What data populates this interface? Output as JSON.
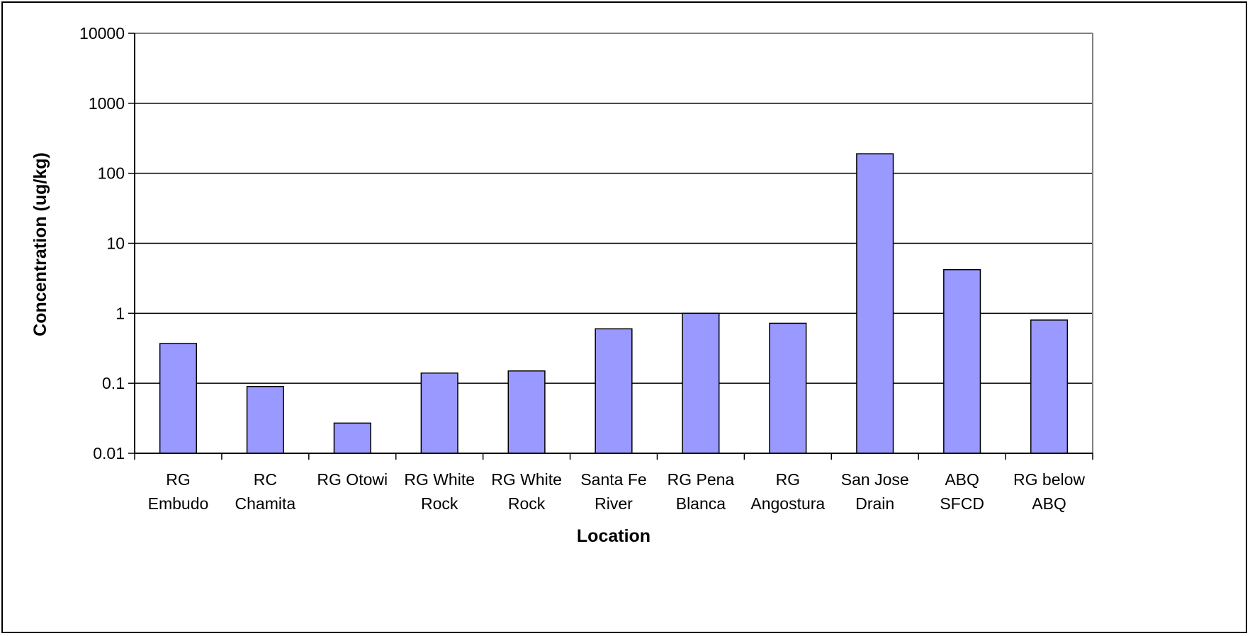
{
  "chart_data": {
    "type": "bar",
    "title": "",
    "xlabel": "Location",
    "ylabel": "Concentration (ug/kg)",
    "yscale": "log",
    "ylim": [
      0.01,
      10000
    ],
    "yticks": [
      "0.01",
      "0.1",
      "1",
      "10",
      "100",
      "1000",
      "10000"
    ],
    "grid": true,
    "legend": "none",
    "categories": [
      [
        "RG",
        "Embudo"
      ],
      [
        "RC",
        "Chamita"
      ],
      [
        "RG Otowi"
      ],
      [
        "RG White",
        "Rock"
      ],
      [
        "RG White",
        "Rock"
      ],
      [
        "Santa Fe",
        "River"
      ],
      [
        "RG Pena",
        "Blanca"
      ],
      [
        "RG",
        "Angostura"
      ],
      [
        "San Jose",
        "Drain"
      ],
      [
        "ABQ",
        "SFCD"
      ],
      [
        "RG below",
        "ABQ"
      ]
    ],
    "values": [
      0.37,
      0.09,
      0.027,
      0.14,
      0.15,
      0.6,
      1.0,
      0.72,
      190,
      4.2,
      0.8
    ],
    "colors": {
      "bar_fill": "#9999FF",
      "bar_stroke": "#000000",
      "plot_border": "#808080",
      "grid": "#000000"
    }
  }
}
